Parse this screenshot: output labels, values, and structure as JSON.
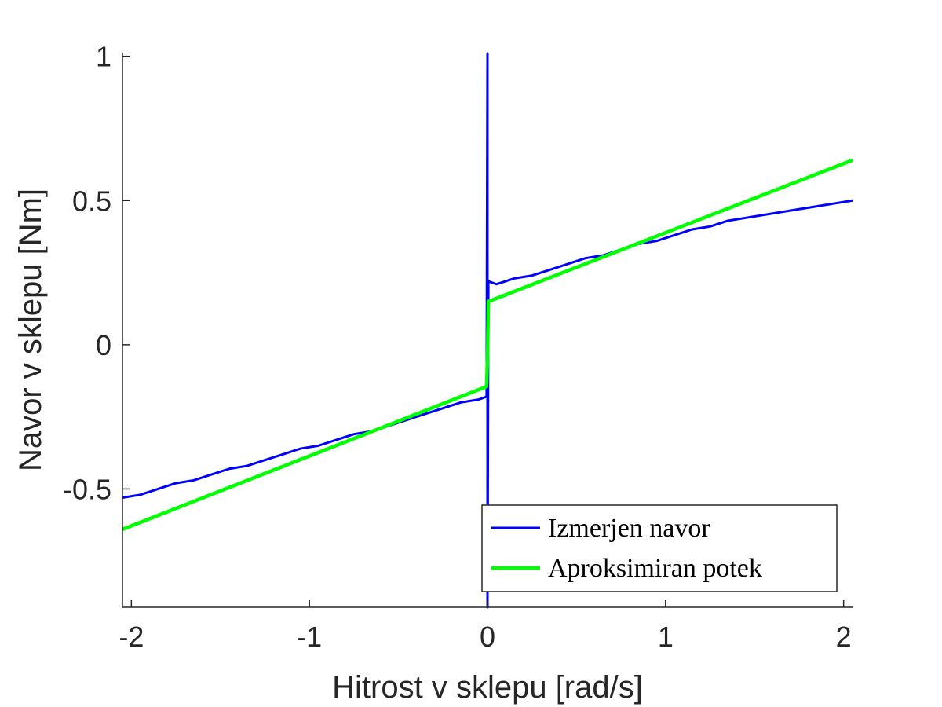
{
  "chart_data": {
    "type": "line",
    "xlabel": "Hitrost v sklepu [rad/s]",
    "ylabel": "Navor v sklepu [Nm]",
    "xlim": [
      -2.05,
      2.05
    ],
    "ylim": [
      -0.91,
      1.01
    ],
    "x_ticks": [
      -2,
      -1,
      0,
      1,
      2
    ],
    "x_tick_labels": [
      "-2",
      "-1",
      "0",
      "1",
      "2"
    ],
    "y_ticks": [
      -0.5,
      0,
      0.5,
      1
    ],
    "y_tick_labels": [
      "-0.5",
      "0",
      "0.5",
      "1"
    ],
    "grid": false,
    "legend_position": "bottom-right",
    "series": [
      {
        "name": "Izmerjen navor",
        "color": "#0000ff",
        "points": [
          [
            -2.05,
            -0.53
          ],
          [
            -1.95,
            -0.52
          ],
          [
            -1.85,
            -0.5
          ],
          [
            -1.75,
            -0.48
          ],
          [
            -1.65,
            -0.47
          ],
          [
            -1.55,
            -0.45
          ],
          [
            -1.45,
            -0.43
          ],
          [
            -1.35,
            -0.42
          ],
          [
            -1.25,
            -0.4
          ],
          [
            -1.15,
            -0.38
          ],
          [
            -1.05,
            -0.36
          ],
          [
            -0.95,
            -0.35
          ],
          [
            -0.85,
            -0.33
          ],
          [
            -0.75,
            -0.31
          ],
          [
            -0.65,
            -0.3
          ],
          [
            -0.55,
            -0.28
          ],
          [
            -0.45,
            -0.26
          ],
          [
            -0.35,
            -0.24
          ],
          [
            -0.25,
            -0.22
          ],
          [
            -0.15,
            -0.2
          ],
          [
            -0.05,
            -0.19
          ],
          [
            -0.005,
            -0.18
          ],
          [
            0.0,
            1.01
          ],
          [
            0.0,
            -0.91
          ],
          [
            0.005,
            0.22
          ],
          [
            0.05,
            0.21
          ],
          [
            0.15,
            0.23
          ],
          [
            0.25,
            0.24
          ],
          [
            0.35,
            0.26
          ],
          [
            0.45,
            0.28
          ],
          [
            0.55,
            0.3
          ],
          [
            0.65,
            0.31
          ],
          [
            0.75,
            0.33
          ],
          [
            0.85,
            0.35
          ],
          [
            0.95,
            0.36
          ],
          [
            1.05,
            0.38
          ],
          [
            1.15,
            0.4
          ],
          [
            1.25,
            0.41
          ],
          [
            1.35,
            0.43
          ],
          [
            1.45,
            0.44
          ],
          [
            1.55,
            0.45
          ],
          [
            1.65,
            0.46
          ],
          [
            1.75,
            0.47
          ],
          [
            1.85,
            0.48
          ],
          [
            1.95,
            0.49
          ],
          [
            2.05,
            0.5
          ]
        ]
      },
      {
        "name": "Aproksimiran potek",
        "color": "#00ff00",
        "points": [
          [
            -2.05,
            -0.64
          ],
          [
            -0.005,
            -0.145
          ],
          [
            0.0,
            -0.05
          ],
          [
            0.005,
            0.15
          ],
          [
            2.05,
            0.64
          ]
        ]
      }
    ]
  }
}
